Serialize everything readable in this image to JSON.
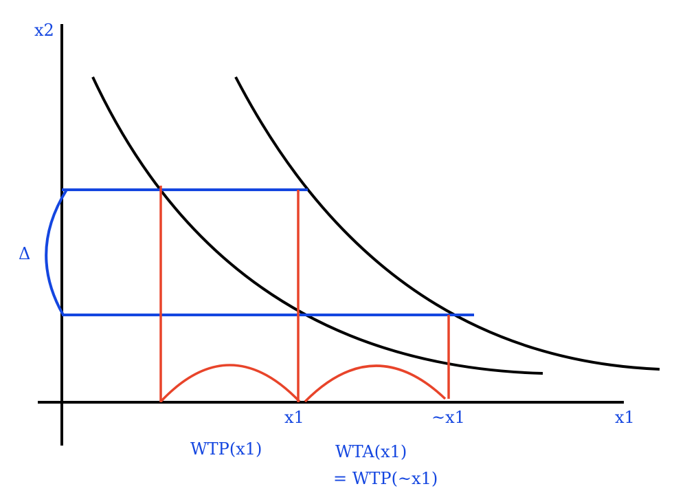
{
  "colors": {
    "axis": "#000000",
    "curves": "#000000",
    "blue": "#1446e0",
    "red": "#e8442a",
    "label": "#1446e0"
  },
  "labels": {
    "y_axis": "x2",
    "x_axis": "x1",
    "delta": "Δ",
    "x1_tick": "x1",
    "tilde_x1_tick": "~x1",
    "wtp": "WTP(x1)",
    "wta_line1": "WTA(x1)",
    "wta_line2": "= WTP(~x1)"
  }
}
